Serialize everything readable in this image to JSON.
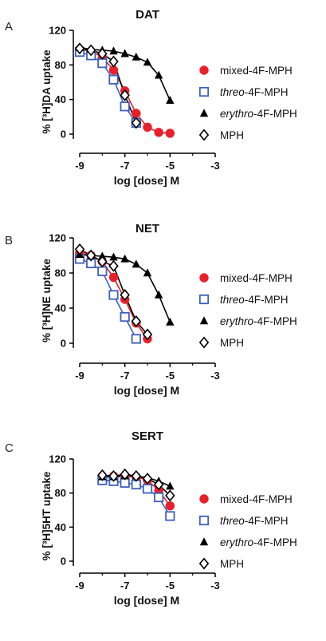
{
  "chart_data": [
    {
      "type": "line",
      "panel_label": "A",
      "title": "DAT",
      "ylabel": "% [³H]DA uptake",
      "xlabel": "log [dose] M",
      "xlim": [
        -9,
        -3
      ],
      "ylim": [
        0,
        120
      ],
      "xticks": [
        "-9",
        "-7",
        "-5",
        "-3"
      ],
      "yticks": [
        "0",
        "40",
        "80",
        "120"
      ],
      "legend_position": "right",
      "series": [
        {
          "name": "mixed-4F-MPH",
          "x": [
            -9,
            -8.5,
            -8,
            -7.5,
            -7,
            -6.5,
            -6,
            -5.5,
            -5
          ],
          "y": [
            98,
            96,
            89,
            74,
            50,
            24,
            8,
            2,
            1
          ]
        },
        {
          "name": "threo-4F-MPH",
          "x": [
            -9,
            -8.5,
            -8,
            -7.5,
            -7,
            -6.5
          ],
          "y": [
            95,
            91,
            82,
            63,
            32,
            13
          ]
        },
        {
          "name": "erythro-4F-MPH",
          "x": [
            -9,
            -8.5,
            -8,
            -7.5,
            -7,
            -6.5,
            -6,
            -5.5,
            -5
          ],
          "y": [
            100,
            98,
            97,
            96,
            93,
            89,
            83,
            68,
            39
          ]
        },
        {
          "name": "MPH",
          "x": [
            -9,
            -8.5,
            -8,
            -7.5,
            -7,
            -6.5
          ],
          "y": [
            99,
            97,
            93,
            84,
            45,
            13
          ]
        }
      ]
    },
    {
      "type": "line",
      "panel_label": "B",
      "title": "NET",
      "ylabel": "% [³H]NE uptake",
      "xlabel": "log [dose] M",
      "xlim": [
        -9,
        -3
      ],
      "ylim": [
        0,
        120
      ],
      "xticks": [
        "-9",
        "-7",
        "-5",
        "-3"
      ],
      "yticks": [
        "0",
        "40",
        "80",
        "120"
      ],
      "legend_position": "right",
      "series": [
        {
          "name": "mixed-4F-MPH",
          "x": [
            -9,
            -8.5,
            -8,
            -7.5,
            -7,
            -6.5,
            -6
          ],
          "y": [
            103,
            100,
            93,
            75,
            50,
            23,
            5
          ]
        },
        {
          "name": "threo-4F-MPH",
          "x": [
            -9,
            -8.5,
            -8,
            -7.5,
            -7,
            -6.5
          ],
          "y": [
            96,
            91,
            82,
            55,
            30,
            5
          ]
        },
        {
          "name": "erythro-4F-MPH",
          "x": [
            -9,
            -8.5,
            -8,
            -7.5,
            -7,
            -6.5,
            -6,
            -5.5,
            -5
          ],
          "y": [
            101,
            100,
            99,
            98,
            96,
            90,
            80,
            55,
            24
          ]
        },
        {
          "name": "MPH",
          "x": [
            -9,
            -8.5,
            -8,
            -7.5,
            -7,
            -6.5,
            -6
          ],
          "y": [
            107,
            100,
            93,
            88,
            55,
            25,
            10
          ]
        }
      ]
    },
    {
      "type": "line",
      "panel_label": "C",
      "title": "SERT",
      "ylabel": "% [³H]5HT uptake",
      "xlabel": "log [dose] M",
      "xlim": [
        -9,
        -3
      ],
      "ylim": [
        0,
        120
      ],
      "xticks": [
        "-9",
        "-7",
        "-5",
        "-3"
      ],
      "yticks": [
        "0",
        "40",
        "80",
        "120"
      ],
      "legend_position": "right",
      "series": [
        {
          "name": "mixed-4F-MPH",
          "x": [
            -8,
            -7.5,
            -7,
            -6.5,
            -6,
            -5.5,
            -5
          ],
          "y": [
            100,
            100,
            100,
            99,
            95,
            83,
            65
          ]
        },
        {
          "name": "threo-4F-MPH",
          "x": [
            -8,
            -7.5,
            -7,
            -6.5,
            -6,
            -5.5,
            -5
          ],
          "y": [
            95,
            94,
            92,
            90,
            85,
            75,
            53
          ]
        },
        {
          "name": "erythro-4F-MPH",
          "x": [
            -8,
            -7.5,
            -7,
            -6.5,
            -6,
            -5.5,
            -5
          ],
          "y": [
            99,
            99,
            100,
            100,
            98,
            94,
            88
          ]
        },
        {
          "name": "MPH",
          "x": [
            -8,
            -7.5,
            -7,
            -6.5,
            -6,
            -5.5,
            -5
          ],
          "y": [
            101,
            100,
            102,
            100,
            97,
            90,
            77
          ]
        }
      ]
    }
  ],
  "styles": {
    "mixed-4F-MPH": {
      "marker": "circle-filled",
      "color": "#e8202a"
    },
    "threo-4F-MPH": {
      "marker": "square-open",
      "color": "#3d5fbe"
    },
    "erythro-4F-MPH": {
      "marker": "triangle-filled",
      "color": "#000000"
    },
    "MPH": {
      "marker": "diamond-open",
      "color": "#000000"
    }
  }
}
